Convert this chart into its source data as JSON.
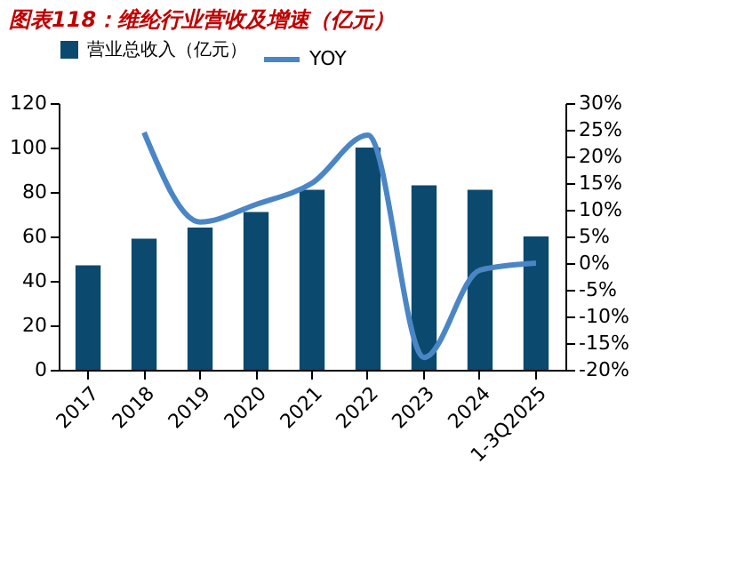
{
  "chart_data": {
    "type": "bar",
    "title": "图表118：维纶行业营收及增速（亿元）",
    "categories": [
      "2017",
      "2018",
      "2019",
      "2020",
      "2021",
      "2022",
      "2023",
      "2024",
      "1-3Q2025"
    ],
    "series": [
      {
        "name": "营业总收入（亿元）",
        "color": "#0b4a6e",
        "values": [
          47,
          59,
          64,
          71,
          81,
          100,
          83,
          81,
          60
        ]
      },
      {
        "name": "YOY",
        "type": "line",
        "axis": "y2",
        "color": "#4a86c5",
        "values": [
          null,
          24.5,
          7.7,
          11,
          15,
          24,
          -17.7,
          -1.3,
          0
        ]
      }
    ],
    "ylim": [
      0,
      120
    ],
    "yticks": [
      0,
      20,
      40,
      60,
      80,
      100,
      120
    ],
    "y2lim": [
      -20,
      30
    ],
    "y2ticks": [
      {
        "value": -20,
        "label": "-20%"
      },
      {
        "value": -15,
        "label": "-15%"
      },
      {
        "value": -10,
        "label": "-10%"
      },
      {
        "value": -5,
        "label": "-5%"
      },
      {
        "value": 0,
        "label": "0%"
      },
      {
        "value": 5,
        "label": "5%"
      },
      {
        "value": 10,
        "label": "10%"
      },
      {
        "value": 15,
        "label": "15%"
      },
      {
        "value": 20,
        "label": "20%"
      },
      {
        "value": 25,
        "label": "25%"
      },
      {
        "value": 30,
        "label": "30%"
      }
    ],
    "legend": "top",
    "grid": false,
    "marker": "none",
    "line_style": "solid"
  }
}
